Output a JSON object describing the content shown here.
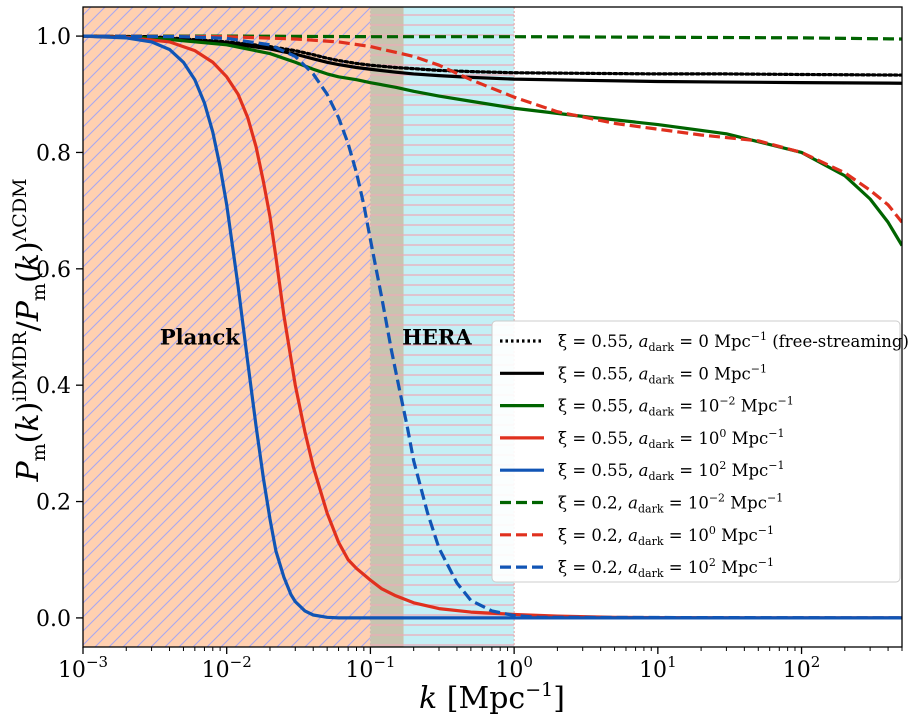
{
  "chart_data": {
    "type": "line",
    "x_scale": "log",
    "xlim": [
      0.001,
      500
    ],
    "ylim": [
      -0.05,
      1.05
    ],
    "xlabel": "k [Mpc⁻¹]",
    "ylabel": "P_m(k)^iDMDR / P_m(k)^ΛCDM",
    "x_ticks": [
      {
        "value": 0.001,
        "base": "10",
        "exp": "−3"
      },
      {
        "value": 0.01,
        "base": "10",
        "exp": "−2"
      },
      {
        "value": 0.1,
        "base": "10",
        "exp": "−1"
      },
      {
        "value": 1,
        "base": "10",
        "exp": "0"
      },
      {
        "value": 10,
        "base": "10",
        "exp": "1"
      },
      {
        "value": 100,
        "base": "10",
        "exp": "2"
      }
    ],
    "y_ticks": [
      {
        "value": 0.0,
        "label": "0.0"
      },
      {
        "value": 0.2,
        "label": "0.2"
      },
      {
        "value": 0.4,
        "label": "0.4"
      },
      {
        "value": 0.6,
        "label": "0.6"
      },
      {
        "value": 0.8,
        "label": "0.8"
      },
      {
        "value": 1.0,
        "label": "1.0"
      }
    ],
    "regions": [
      {
        "name": "Planck",
        "x_range": [
          0.001,
          0.1
        ],
        "color": "#ffd0b0",
        "hatch": "diagonal",
        "hatch_color": "#a9a8f0",
        "label_at": [
          0.0065,
          0.47
        ]
      },
      {
        "name": "HERA",
        "x_range": [
          0.1,
          1.0
        ],
        "color": "#c5eff5",
        "hatch": "horizontal",
        "hatch_color": "#f0a8b8",
        "overlap_x_range": [
          0.1,
          0.17
        ],
        "overlap_color": "#c8c4b0",
        "label_at": [
          0.29,
          0.47
        ]
      }
    ],
    "series": [
      {
        "name": "ξ = 0.55, a_dark = 0 Mpc⁻¹ (free-streaming)",
        "color": "#000000",
        "dash": "dotted",
        "x": [
          0.001,
          0.003,
          0.01,
          0.02,
          0.03,
          0.04,
          0.05,
          0.06,
          0.08,
          0.1,
          0.15,
          0.2,
          0.3,
          0.5,
          1,
          3,
          10,
          30,
          100,
          500
        ],
        "y": [
          1.0,
          0.999,
          0.99,
          0.982,
          0.975,
          0.968,
          0.962,
          0.958,
          0.953,
          0.95,
          0.946,
          0.944,
          0.941,
          0.939,
          0.937,
          0.936,
          0.935,
          0.935,
          0.934,
          0.933
        ]
      },
      {
        "name": "ξ = 0.55, a_dark = 0 Mpc⁻¹",
        "color": "#000000",
        "dash": "solid",
        "x": [
          0.001,
          0.003,
          0.01,
          0.02,
          0.03,
          0.04,
          0.05,
          0.06,
          0.08,
          0.1,
          0.15,
          0.2,
          0.3,
          0.5,
          1,
          3,
          10,
          30,
          100,
          500
        ],
        "y": [
          1.0,
          0.998,
          0.988,
          0.978,
          0.969,
          0.961,
          0.955,
          0.951,
          0.946,
          0.943,
          0.938,
          0.935,
          0.932,
          0.929,
          0.926,
          0.924,
          0.922,
          0.921,
          0.92,
          0.919
        ]
      },
      {
        "name": "ξ = 0.55, a_dark = 10⁻² Mpc⁻¹",
        "color": "#006400",
        "dash": "solid",
        "x": [
          0.001,
          0.003,
          0.01,
          0.02,
          0.03,
          0.04,
          0.05,
          0.06,
          0.08,
          0.1,
          0.15,
          0.2,
          0.3,
          0.5,
          1,
          3,
          10,
          30,
          100,
          200,
          300,
          400,
          500
        ],
        "y": [
          1.0,
          0.997,
          0.985,
          0.97,
          0.955,
          0.943,
          0.935,
          0.93,
          0.925,
          0.92,
          0.912,
          0.905,
          0.897,
          0.888,
          0.876,
          0.862,
          0.848,
          0.832,
          0.8,
          0.76,
          0.72,
          0.68,
          0.64
        ]
      },
      {
        "name": "ξ = 0.55, a_dark = 10⁰ Mpc⁻¹",
        "color": "#e0301e",
        "dash": "solid",
        "x": [
          0.001,
          0.002,
          0.004,
          0.006,
          0.008,
          0.01,
          0.012,
          0.014,
          0.016,
          0.018,
          0.02,
          0.022,
          0.025,
          0.03,
          0.035,
          0.04,
          0.05,
          0.06,
          0.07,
          0.08,
          0.1,
          0.12,
          0.15,
          0.2,
          0.3,
          0.5,
          1,
          2,
          5,
          10,
          50,
          500
        ],
        "y": [
          1.0,
          0.998,
          0.99,
          0.975,
          0.955,
          0.93,
          0.9,
          0.86,
          0.81,
          0.75,
          0.69,
          0.62,
          0.52,
          0.4,
          0.32,
          0.26,
          0.18,
          0.13,
          0.1,
          0.085,
          0.065,
          0.05,
          0.038,
          0.026,
          0.016,
          0.01,
          0.006,
          0.003,
          0.001,
          0.0005,
          0.0,
          0.0
        ]
      },
      {
        "name": "ξ = 0.55, a_dark = 10² Mpc⁻¹",
        "color": "#1155b5",
        "dash": "solid",
        "x": [
          0.001,
          0.002,
          0.003,
          0.004,
          0.005,
          0.006,
          0.007,
          0.008,
          0.009,
          0.01,
          0.012,
          0.014,
          0.016,
          0.018,
          0.02,
          0.022,
          0.025,
          0.028,
          0.03,
          0.035,
          0.04,
          0.05,
          0.06,
          0.08,
          0.1,
          0.3,
          1,
          10,
          100,
          500
        ],
        "y": [
          1.0,
          0.997,
          0.99,
          0.977,
          0.955,
          0.925,
          0.885,
          0.835,
          0.775,
          0.71,
          0.57,
          0.44,
          0.33,
          0.24,
          0.17,
          0.115,
          0.07,
          0.04,
          0.028,
          0.012,
          0.005,
          0.001,
          0.0,
          0.0,
          0.0,
          0.0,
          0.0,
          0.0,
          0.0,
          0.0
        ]
      },
      {
        "name": "ξ = 0.2, a_dark = 10⁻² Mpc⁻¹",
        "color": "#006400",
        "dash": "dashed",
        "x": [
          0.001,
          0.01,
          0.1,
          1,
          10,
          100,
          500
        ],
        "y": [
          1.0,
          1.0,
          0.999,
          0.999,
          0.998,
          0.997,
          0.995
        ]
      },
      {
        "name": "ξ = 0.2, a_dark = 10⁰ Mpc⁻¹",
        "color": "#e0301e",
        "dash": "dashed",
        "x": [
          0.001,
          0.01,
          0.03,
          0.06,
          0.1,
          0.2,
          0.3,
          0.5,
          1,
          2,
          5,
          10,
          20,
          50,
          100,
          200,
          300,
          400,
          500
        ],
        "y": [
          1.0,
          0.999,
          0.995,
          0.99,
          0.982,
          0.965,
          0.95,
          0.925,
          0.895,
          0.87,
          0.85,
          0.84,
          0.83,
          0.82,
          0.8,
          0.765,
          0.735,
          0.71,
          0.68
        ]
      },
      {
        "name": "ξ = 0.2, a_dark = 10² Mpc⁻¹",
        "color": "#1155b5",
        "dash": "dashed",
        "x": [
          0.001,
          0.005,
          0.01,
          0.02,
          0.03,
          0.04,
          0.05,
          0.06,
          0.07,
          0.08,
          0.09,
          0.1,
          0.12,
          0.14,
          0.16,
          0.18,
          0.2,
          0.25,
          0.3,
          0.4,
          0.5,
          0.7,
          1.0,
          1.5,
          500
        ],
        "y": [
          1.0,
          0.999,
          0.996,
          0.985,
          0.965,
          0.935,
          0.9,
          0.86,
          0.815,
          0.765,
          0.71,
          0.65,
          0.55,
          0.46,
          0.39,
          0.33,
          0.27,
          0.18,
          0.12,
          0.06,
          0.03,
          0.012,
          0.004,
          0.001,
          0.0
        ]
      }
    ],
    "legend": {
      "placement": "center-right",
      "entries": [
        {
          "prefix": "ξ = 0.55, ",
          "sub": "dark",
          "mid": " = 0 Mpc",
          "exp1": "",
          "exp2": "−1",
          "suffix": " (free-streaming)"
        },
        {
          "prefix": "ξ = 0.55, ",
          "sub": "dark",
          "mid": " = 0 Mpc",
          "exp1": "",
          "exp2": "−1",
          "suffix": ""
        },
        {
          "prefix": "ξ = 0.55, ",
          "sub": "dark",
          "mid": " = 10",
          "exp1": "−2",
          "exp2": "−1",
          "suffix": ""
        },
        {
          "prefix": "ξ = 0.55, ",
          "sub": "dark",
          "mid": " = 10",
          "exp1": "0",
          "exp2": "−1",
          "suffix": ""
        },
        {
          "prefix": "ξ = 0.55, ",
          "sub": "dark",
          "mid": " = 10",
          "exp1": "2",
          "exp2": "−1",
          "suffix": ""
        },
        {
          "prefix": "ξ = 0.2, ",
          "sub": "dark",
          "mid": " = 10",
          "exp1": "−2",
          "exp2": "−1",
          "suffix": ""
        },
        {
          "prefix": "ξ = 0.2, ",
          "sub": "dark",
          "mid": " = 10",
          "exp1": "0",
          "exp2": "−1",
          "suffix": ""
        },
        {
          "prefix": "ξ = 0.2, ",
          "sub": "dark",
          "mid": " = 10",
          "exp1": "2",
          "exp2": "−1",
          "suffix": ""
        }
      ]
    }
  }
}
